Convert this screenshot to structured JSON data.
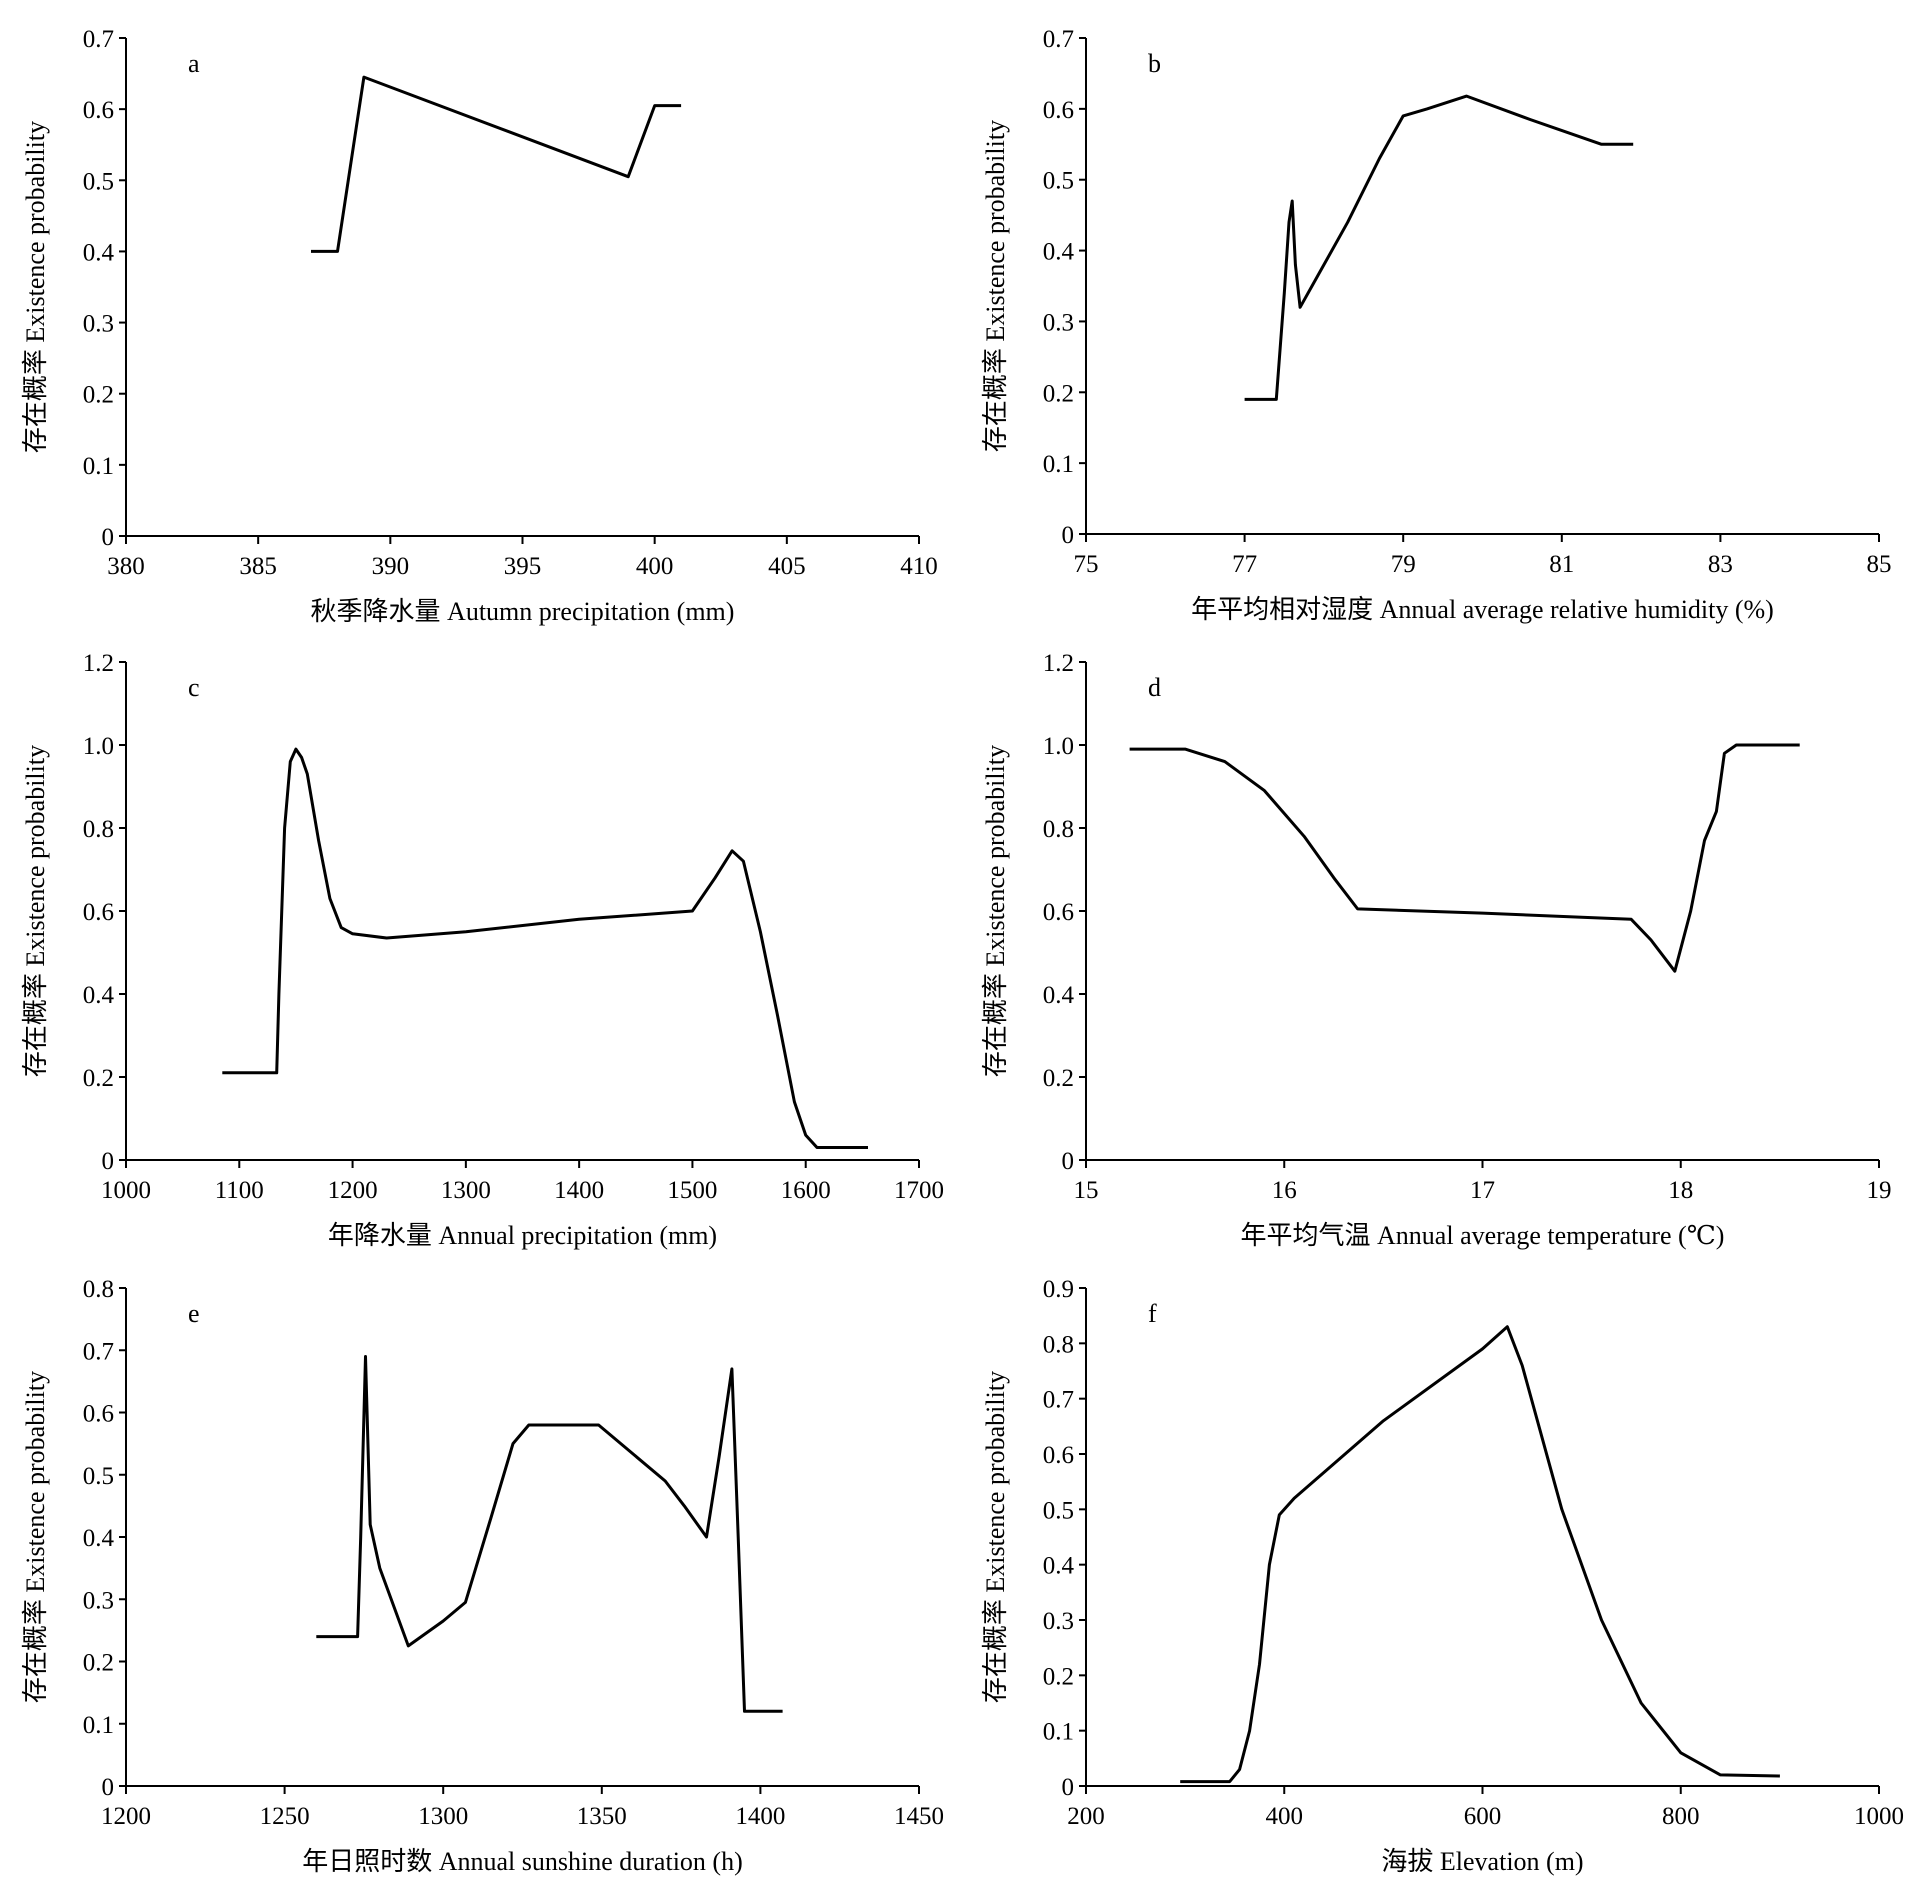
{
  "chart_data": [
    {
      "type": "line",
      "panel_label": "a",
      "xlabel": "秋季降水量 Autumn precipitation (mm)",
      "ylabel": "存在概率 Existence probability",
      "xlim": [
        380,
        410
      ],
      "ylim": [
        0,
        0.7
      ],
      "xticks": [
        380,
        385,
        390,
        395,
        400,
        405,
        410
      ],
      "yticks": [
        0,
        0.1,
        0.2,
        0.3,
        0.4,
        0.5,
        0.6,
        0.7
      ],
      "x": [
        387,
        388,
        389,
        399,
        400,
        401
      ],
      "y": [
        0.4,
        0.4,
        0.645,
        0.505,
        0.605,
        0.605
      ]
    },
    {
      "type": "line",
      "panel_label": "b",
      "xlabel": "年平均相对湿度 Annual average relative humidity (%)",
      "ylabel": "存在概率 Existence probability",
      "xlim": [
        75,
        85
      ],
      "ylim": [
        0,
        0.7
      ],
      "xticks": [
        75,
        77,
        79,
        81,
        83,
        85
      ],
      "yticks": [
        0,
        0.1,
        0.2,
        0.3,
        0.4,
        0.5,
        0.6,
        0.7
      ],
      "x": [
        77.0,
        77.4,
        77.5,
        77.56,
        77.6,
        77.64,
        77.7,
        77.9,
        78.3,
        78.7,
        79.0,
        79.3,
        79.8,
        80.6,
        81.5,
        81.9
      ],
      "y": [
        0.19,
        0.19,
        0.34,
        0.44,
        0.47,
        0.38,
        0.32,
        0.36,
        0.44,
        0.53,
        0.59,
        0.6,
        0.618,
        0.585,
        0.55,
        0.55
      ]
    },
    {
      "type": "line",
      "panel_label": "c",
      "xlabel": "年降水量 Annual precipitation (mm)",
      "ylabel": "存在概率 Existence probability",
      "xlim": [
        1000,
        1700
      ],
      "ylim": [
        0,
        1.2
      ],
      "xticks": [
        1000,
        1100,
        1200,
        1300,
        1400,
        1500,
        1600,
        1700
      ],
      "yticks": [
        0,
        0.2,
        0.4,
        0.6,
        0.8,
        1.0,
        1.2
      ],
      "ytick_decimals": 1,
      "x": [
        1085,
        1133,
        1135,
        1140,
        1145,
        1150,
        1155,
        1160,
        1170,
        1180,
        1190,
        1200,
        1230,
        1300,
        1400,
        1500,
        1520,
        1535,
        1545,
        1560,
        1575,
        1590,
        1600,
        1610,
        1620,
        1655
      ],
      "y": [
        0.21,
        0.21,
        0.4,
        0.8,
        0.96,
        0.99,
        0.97,
        0.93,
        0.77,
        0.63,
        0.56,
        0.545,
        0.535,
        0.55,
        0.58,
        0.6,
        0.68,
        0.745,
        0.72,
        0.55,
        0.35,
        0.14,
        0.06,
        0.03,
        0.03,
        0.03
      ]
    },
    {
      "type": "line",
      "panel_label": "d",
      "xlabel": "年平均气温 Annual average temperature (℃)",
      "ylabel": "存在概率 Existence probability",
      "xlim": [
        15,
        19
      ],
      "ylim": [
        0,
        1.2
      ],
      "xticks": [
        15,
        16,
        17,
        18,
        19
      ],
      "yticks": [
        0,
        0.2,
        0.4,
        0.6,
        0.8,
        1.0,
        1.2
      ],
      "ytick_decimals": 1,
      "x": [
        15.22,
        15.5,
        15.7,
        15.9,
        16.1,
        16.25,
        16.37,
        17.0,
        17.5,
        17.75,
        17.85,
        17.97,
        18.05,
        18.12,
        18.18,
        18.22,
        18.28,
        18.6
      ],
      "y": [
        0.99,
        0.99,
        0.96,
        0.89,
        0.78,
        0.68,
        0.605,
        0.595,
        0.585,
        0.58,
        0.53,
        0.455,
        0.6,
        0.77,
        0.84,
        0.98,
        1.0,
        1.0
      ]
    },
    {
      "type": "line",
      "panel_label": "e",
      "xlabel": "年日照时数 Annual sunshine duration (h)",
      "ylabel": "存在概率 Existence probability",
      "xlim": [
        1200,
        1450
      ],
      "ylim": [
        0,
        0.8
      ],
      "xticks": [
        1200,
        1250,
        1300,
        1350,
        1400,
        1450
      ],
      "yticks": [
        0,
        0.1,
        0.2,
        0.3,
        0.4,
        0.5,
        0.6,
        0.7,
        0.8
      ],
      "x": [
        1260,
        1273,
        1274,
        1275.5,
        1277,
        1280,
        1289,
        1300,
        1307,
        1315,
        1322,
        1327,
        1349,
        1370,
        1376,
        1383,
        1387,
        1391,
        1393,
        1395,
        1397,
        1407
      ],
      "y": [
        0.24,
        0.24,
        0.4,
        0.69,
        0.42,
        0.35,
        0.225,
        0.265,
        0.295,
        0.43,
        0.55,
        0.58,
        0.58,
        0.49,
        0.45,
        0.4,
        0.53,
        0.67,
        0.4,
        0.12,
        0.12,
        0.12
      ]
    },
    {
      "type": "line",
      "panel_label": "f",
      "xlabel": "海拔 Elevation (m)",
      "ylabel": "存在概率 Existence probability",
      "xlim": [
        200,
        1000
      ],
      "ylim": [
        0,
        0.9
      ],
      "xticks": [
        200,
        400,
        600,
        800,
        1000
      ],
      "yticks": [
        0,
        0.1,
        0.2,
        0.3,
        0.4,
        0.5,
        0.6,
        0.7,
        0.8,
        0.9
      ],
      "x": [
        295,
        345,
        355,
        365,
        375,
        385,
        395,
        410,
        500,
        600,
        625,
        640,
        680,
        720,
        760,
        800,
        840,
        900
      ],
      "y": [
        0.008,
        0.008,
        0.03,
        0.1,
        0.22,
        0.4,
        0.49,
        0.52,
        0.66,
        0.79,
        0.83,
        0.76,
        0.5,
        0.3,
        0.15,
        0.06,
        0.02,
        0.018
      ]
    }
  ]
}
